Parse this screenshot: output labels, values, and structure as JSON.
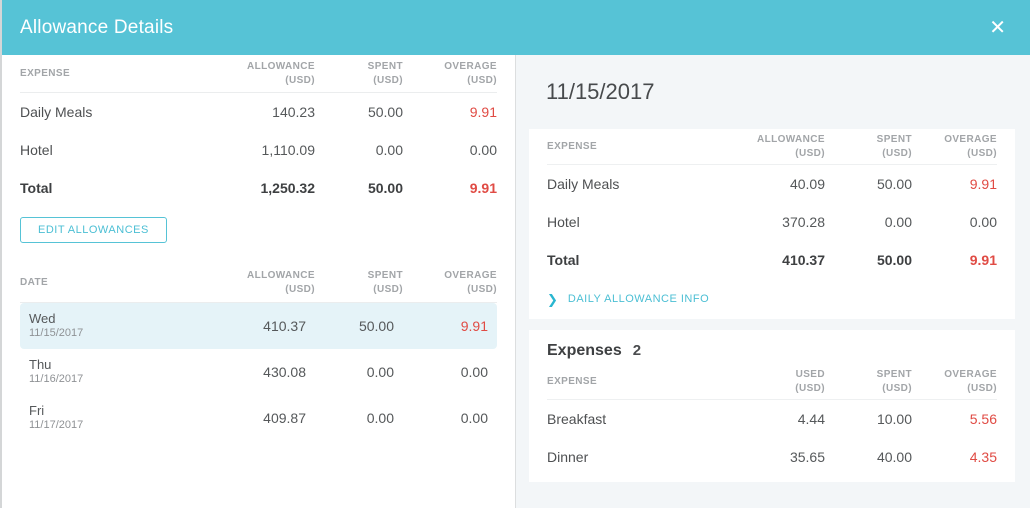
{
  "colors": {
    "accent": "#56c3d6",
    "overage_red": "#e04b44",
    "row_highlight": "#e5f3f8",
    "panel_background": "#f3f6f8"
  },
  "modal": {
    "title": "Allowance Details",
    "close_icon": "✕"
  },
  "left_panel": {
    "summary": {
      "header_cols": [
        {
          "label": "EXPENSE",
          "unit": ""
        },
        {
          "label": "ALLOWANCE",
          "unit": "(USD)"
        },
        {
          "label": "SPENT",
          "unit": "(USD)"
        },
        {
          "label": "OVERAGE",
          "unit": "(USD)"
        }
      ],
      "rows": [
        {
          "name": "Daily Meals",
          "allowance": "140.23",
          "spent": "50.00",
          "overage": "9.91"
        },
        {
          "name": "Hotel",
          "allowance": "1,110.09",
          "spent": "0.00",
          "overage": "0.00"
        },
        {
          "name": "Total",
          "allowance": "1,250.32",
          "spent": "50.00",
          "overage": "9.91"
        }
      ],
      "edit_button_label": "EDIT ALLOWANCES"
    },
    "dates": {
      "header_cols": [
        {
          "label": "DATE",
          "unit": ""
        },
        {
          "label": "ALLOWANCE",
          "unit": "(USD)"
        },
        {
          "label": "SPENT",
          "unit": "(USD)"
        },
        {
          "label": "OVERAGE",
          "unit": "(USD)"
        }
      ],
      "rows": [
        {
          "day": "Wed",
          "date": "11/15/2017",
          "allowance": "410.37",
          "spent": "50.00",
          "overage": "9.91"
        },
        {
          "day": "Thu",
          "date": "11/16/2017",
          "allowance": "430.08",
          "spent": "0.00",
          "overage": "0.00"
        },
        {
          "day": "Fri",
          "date": "11/17/2017",
          "allowance": "409.87",
          "spent": "0.00",
          "overage": "0.00"
        }
      ]
    }
  },
  "right_panel": {
    "date_title": "11/15/2017",
    "day_summary": {
      "header_cols": [
        {
          "label": "EXPENSE",
          "unit": ""
        },
        {
          "label": "ALLOWANCE",
          "unit": "(USD)"
        },
        {
          "label": "SPENT",
          "unit": "(USD)"
        },
        {
          "label": "OVERAGE",
          "unit": "(USD)"
        }
      ],
      "rows": [
        {
          "name": "Daily Meals",
          "allowance": "40.09",
          "spent": "50.00",
          "overage": "9.91"
        },
        {
          "name": "Hotel",
          "allowance": "370.28",
          "spent": "0.00",
          "overage": "0.00"
        },
        {
          "name": "Total",
          "allowance": "410.37",
          "spent": "50.00",
          "overage": "9.91"
        }
      ],
      "info_link_label": "DAILY ALLOWANCE INFO",
      "chevron_icon": "❯"
    },
    "expenses": {
      "title": "Expenses",
      "count": "2",
      "header_cols": [
        {
          "label": "EXPENSE",
          "unit": ""
        },
        {
          "label": "USED",
          "unit": "(USD)"
        },
        {
          "label": "SPENT",
          "unit": "(USD)"
        },
        {
          "label": "OVERAGE",
          "unit": "(USD)"
        }
      ],
      "rows": [
        {
          "name": "Breakfast",
          "used": "4.44",
          "spent": "10.00",
          "overage": "5.56"
        },
        {
          "name": "Dinner",
          "used": "35.65",
          "spent": "40.00",
          "overage": "4.35"
        }
      ]
    }
  }
}
